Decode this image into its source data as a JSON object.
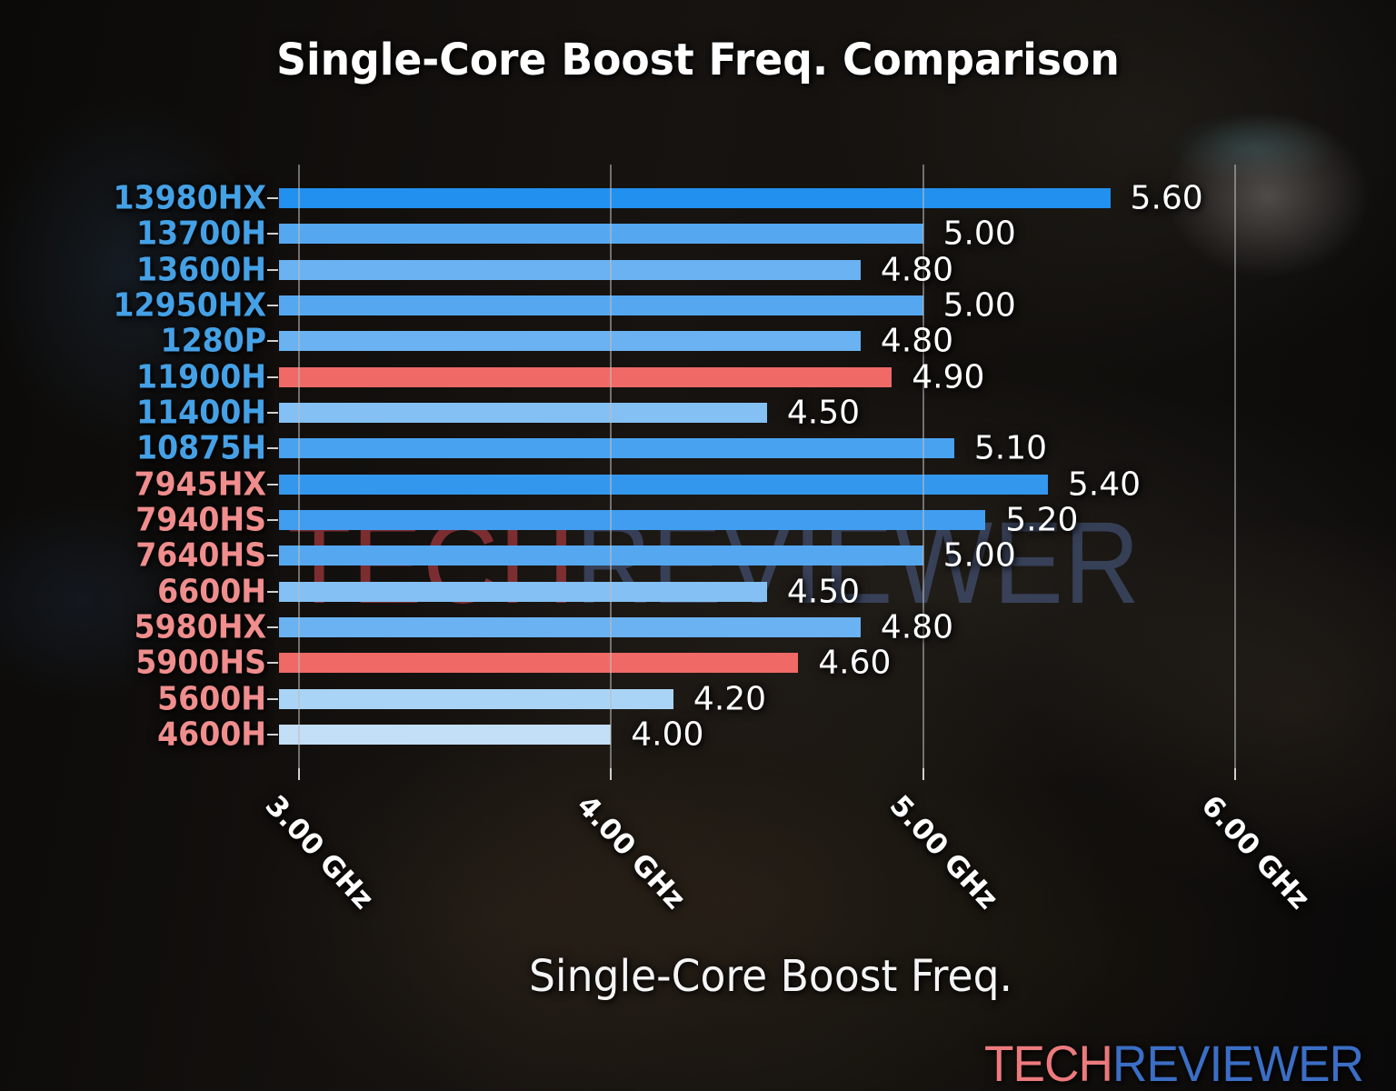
{
  "title": "Single-Core Boost Freq. Comparison",
  "watermark": {
    "part1": "TECH",
    "part2": "REVIEWER",
    "part1_color": "rgba(150,52,58,0.80)",
    "part2_color": "rgba(76,96,140,0.55)"
  },
  "logo": {
    "part1": "TECH",
    "part2": "REVIEWER",
    "part1_color": "#ed7a7d",
    "part2_color": "#3b6ec5"
  },
  "chart_data": {
    "type": "bar",
    "orientation": "horizontal",
    "title": "Single-Core Boost Freq. Comparison",
    "xlabel": "Single-Core Boost Freq.",
    "grid": true,
    "xlim": [
      2.94,
      6.09
    ],
    "x_axis_ticks": [
      {
        "value": 3,
        "label": "3.00 GHz"
      },
      {
        "value": 4,
        "label": "4.00 GHz"
      },
      {
        "value": 5,
        "label": "5.00 GHz"
      },
      {
        "value": 6,
        "label": "6.00 GHz"
      }
    ],
    "legend_colors": {
      "intel_label_color": "#45a1e6",
      "amd_label_color": "#f08d8d",
      "highlight_bar_color": "#ef6a66"
    },
    "bars": [
      {
        "category": "13980HX",
        "value": 5.6,
        "value_label": "5.60",
        "bar_color": "#2290ee",
        "category_color": "#45a1e6"
      },
      {
        "category": "13700H",
        "value": 5.0,
        "value_label": "5.00",
        "bar_color": "#55a8f0",
        "category_color": "#45a1e6"
      },
      {
        "category": "13600H",
        "value": 4.8,
        "value_label": "4.80",
        "bar_color": "#6ab2f1",
        "category_color": "#45a1e6"
      },
      {
        "category": "12950HX",
        "value": 5.0,
        "value_label": "5.00",
        "bar_color": "#55a8f0",
        "category_color": "#45a1e6"
      },
      {
        "category": "1280P",
        "value": 4.8,
        "value_label": "4.80",
        "bar_color": "#6ab2f1",
        "category_color": "#45a1e6"
      },
      {
        "category": "11900H",
        "value": 4.9,
        "value_label": "4.90",
        "bar_color": "#ef6a66",
        "category_color": "#45a1e6"
      },
      {
        "category": "11400H",
        "value": 4.5,
        "value_label": "4.50",
        "bar_color": "#84c0f3",
        "category_color": "#45a1e6"
      },
      {
        "category": "10875H",
        "value": 5.1,
        "value_label": "5.10",
        "bar_color": "#49a2ef",
        "category_color": "#45a1e6"
      },
      {
        "category": "7945HX",
        "value": 5.4,
        "value_label": "5.40",
        "bar_color": "#3497ee",
        "category_color": "#f08d8d"
      },
      {
        "category": "7940HS",
        "value": 5.2,
        "value_label": "5.20",
        "bar_color": "#409df0",
        "category_color": "#f08d8d"
      },
      {
        "category": "7640HS",
        "value": 5.0,
        "value_label": "5.00",
        "bar_color": "#55a8f0",
        "category_color": "#f08d8d"
      },
      {
        "category": "6600H",
        "value": 4.5,
        "value_label": "4.50",
        "bar_color": "#84c0f3",
        "category_color": "#f08d8d"
      },
      {
        "category": "5980HX",
        "value": 4.8,
        "value_label": "4.80",
        "bar_color": "#6ab2f1",
        "category_color": "#f08d8d"
      },
      {
        "category": "5900HS",
        "value": 4.6,
        "value_label": "4.60",
        "bar_color": "#ef6a66",
        "category_color": "#f08d8d"
      },
      {
        "category": "5600H",
        "value": 4.2,
        "value_label": "4.20",
        "bar_color": "#a9d4f6",
        "category_color": "#f08d8d"
      },
      {
        "category": "4600H",
        "value": 4.0,
        "value_label": "4.00",
        "bar_color": "#c2dff7",
        "category_color": "#f08d8d"
      }
    ]
  }
}
